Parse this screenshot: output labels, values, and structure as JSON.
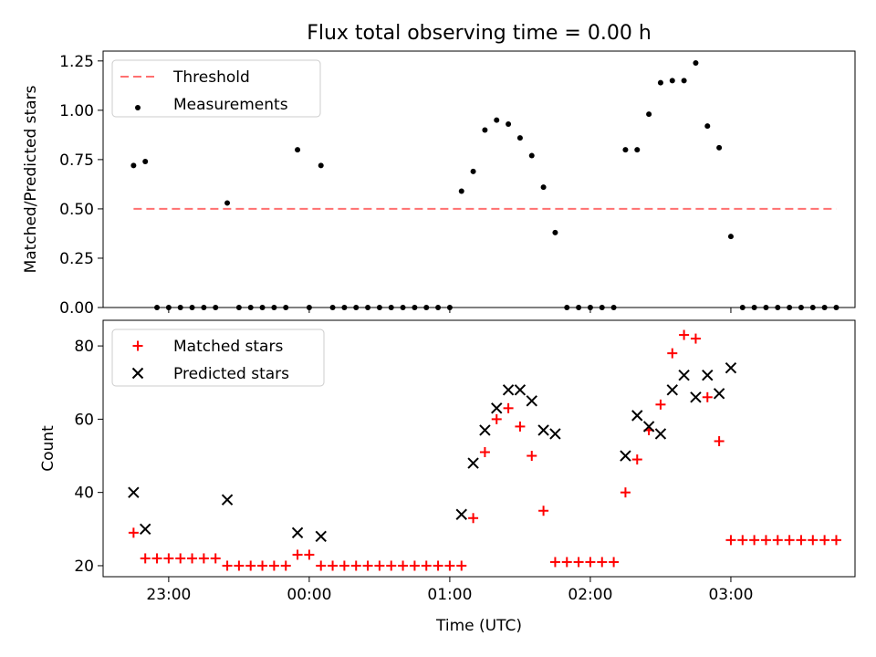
{
  "title": "Flux total observing time = 0.00 h",
  "chart_data": [
    {
      "type": "scatter",
      "panel": "top",
      "xlabel": "",
      "ylabel": "Matched/Predicted stars",
      "xlim": [
        "22:32",
        "03:53"
      ],
      "ylim": [
        0,
        1.3
      ],
      "yticks": [
        0,
        0.25,
        0.5,
        0.75,
        1.0,
        1.25
      ],
      "ytick_labels": [
        "0.00",
        "0.25",
        "0.50",
        "0.75",
        "1.00",
        "1.25"
      ],
      "legend_position": "upper left",
      "legend": [
        {
          "label": "Threshold",
          "marker": "dashed-line",
          "color": "#ff7070"
        },
        {
          "label": "Measurements",
          "marker": "dot",
          "color": "#000000"
        }
      ],
      "threshold": {
        "value": 0.5,
        "x_range": [
          "22:45",
          "03:45"
        ],
        "color": "#ff7070"
      },
      "series": [
        {
          "name": "Measurements",
          "color": "#000000",
          "points": [
            [
              "22:45",
              0.72
            ],
            [
              "22:50",
              0.74
            ],
            [
              "22:55",
              0.0
            ],
            [
              "23:00",
              0.0
            ],
            [
              "23:05",
              0.0
            ],
            [
              "23:10",
              0.0
            ],
            [
              "23:15",
              0.0
            ],
            [
              "23:20",
              0.0
            ],
            [
              "23:25",
              0.53
            ],
            [
              "23:30",
              0.0
            ],
            [
              "23:35",
              0.0
            ],
            [
              "23:40",
              0.0
            ],
            [
              "23:45",
              0.0
            ],
            [
              "23:50",
              0.0
            ],
            [
              "23:55",
              0.8
            ],
            [
              "00:00",
              0.0
            ],
            [
              "00:05",
              0.72
            ],
            [
              "00:10",
              0.0
            ],
            [
              "00:15",
              0.0
            ],
            [
              "00:20",
              0.0
            ],
            [
              "00:25",
              0.0
            ],
            [
              "00:30",
              0.0
            ],
            [
              "00:35",
              0.0
            ],
            [
              "00:40",
              0.0
            ],
            [
              "00:45",
              0.0
            ],
            [
              "00:50",
              0.0
            ],
            [
              "00:55",
              0.0
            ],
            [
              "01:00",
              0.0
            ],
            [
              "01:05",
              0.59
            ],
            [
              "01:10",
              0.69
            ],
            [
              "01:15",
              0.9
            ],
            [
              "01:20",
              0.95
            ],
            [
              "01:25",
              0.93
            ],
            [
              "01:30",
              0.86
            ],
            [
              "01:35",
              0.77
            ],
            [
              "01:40",
              0.61
            ],
            [
              "01:45",
              0.38
            ],
            [
              "01:50",
              0.0
            ],
            [
              "01:55",
              0.0
            ],
            [
              "02:00",
              0.0
            ],
            [
              "02:05",
              0.0
            ],
            [
              "02:10",
              0.0
            ],
            [
              "02:15",
              0.8
            ],
            [
              "02:20",
              0.8
            ],
            [
              "02:25",
              0.98
            ],
            [
              "02:30",
              1.14
            ],
            [
              "02:35",
              1.15
            ],
            [
              "02:40",
              1.15
            ],
            [
              "02:45",
              1.24
            ],
            [
              "02:50",
              0.92
            ],
            [
              "02:55",
              0.81
            ],
            [
              "03:00",
              0.36
            ],
            [
              "03:05",
              0.0
            ],
            [
              "03:10",
              0.0
            ],
            [
              "03:15",
              0.0
            ],
            [
              "03:20",
              0.0
            ],
            [
              "03:25",
              0.0
            ],
            [
              "03:30",
              0.0
            ],
            [
              "03:35",
              0.0
            ],
            [
              "03:40",
              0.0
            ],
            [
              "03:45",
              0.0
            ]
          ]
        }
      ]
    },
    {
      "type": "scatter",
      "panel": "bottom",
      "xlabel": "Time (UTC)",
      "ylabel": "Count",
      "xlim": [
        "22:32",
        "03:53"
      ],
      "xticks": [
        "23:00",
        "00:00",
        "01:00",
        "02:00",
        "03:00"
      ],
      "ylim": [
        17,
        87
      ],
      "yticks": [
        20,
        40,
        60,
        80
      ],
      "ytick_labels": [
        "20",
        "40",
        "60",
        "80"
      ],
      "legend_position": "upper left",
      "legend": [
        {
          "label": "Matched stars",
          "marker": "plus",
          "color": "#ff0000"
        },
        {
          "label": "Predicted stars",
          "marker": "x",
          "color": "#000000"
        }
      ],
      "series": [
        {
          "name": "Matched stars",
          "marker": "plus",
          "color": "#ff0000",
          "points": [
            [
              "22:45",
              29
            ],
            [
              "22:50",
              22
            ],
            [
              "22:55",
              22
            ],
            [
              "23:00",
              22
            ],
            [
              "23:05",
              22
            ],
            [
              "23:10",
              22
            ],
            [
              "23:15",
              22
            ],
            [
              "23:20",
              22
            ],
            [
              "23:25",
              20
            ],
            [
              "23:30",
              20
            ],
            [
              "23:35",
              20
            ],
            [
              "23:40",
              20
            ],
            [
              "23:45",
              20
            ],
            [
              "23:50",
              20
            ],
            [
              "23:55",
              23
            ],
            [
              "00:00",
              23
            ],
            [
              "00:05",
              20
            ],
            [
              "00:10",
              20
            ],
            [
              "00:15",
              20
            ],
            [
              "00:20",
              20
            ],
            [
              "00:25",
              20
            ],
            [
              "00:30",
              20
            ],
            [
              "00:35",
              20
            ],
            [
              "00:40",
              20
            ],
            [
              "00:45",
              20
            ],
            [
              "00:50",
              20
            ],
            [
              "00:55",
              20
            ],
            [
              "01:00",
              20
            ],
            [
              "01:05",
              20
            ],
            [
              "01:10",
              33
            ],
            [
              "01:15",
              51
            ],
            [
              "01:20",
              60
            ],
            [
              "01:25",
              63
            ],
            [
              "01:30",
              58
            ],
            [
              "01:35",
              50
            ],
            [
              "01:40",
              35
            ],
            [
              "01:45",
              21
            ],
            [
              "01:50",
              21
            ],
            [
              "01:55",
              21
            ],
            [
              "02:00",
              21
            ],
            [
              "02:05",
              21
            ],
            [
              "02:10",
              21
            ],
            [
              "02:15",
              40
            ],
            [
              "02:20",
              49
            ],
            [
              "02:25",
              57
            ],
            [
              "02:30",
              64
            ],
            [
              "02:35",
              78
            ],
            [
              "02:40",
              83
            ],
            [
              "02:45",
              82
            ],
            [
              "02:50",
              66
            ],
            [
              "02:55",
              54
            ],
            [
              "03:00",
              27
            ],
            [
              "03:05",
              27
            ],
            [
              "03:10",
              27
            ],
            [
              "03:15",
              27
            ],
            [
              "03:20",
              27
            ],
            [
              "03:25",
              27
            ],
            [
              "03:30",
              27
            ],
            [
              "03:35",
              27
            ],
            [
              "03:40",
              27
            ],
            [
              "03:45",
              27
            ]
          ]
        },
        {
          "name": "Predicted stars",
          "marker": "x",
          "color": "#000000",
          "points": [
            [
              "22:45",
              40
            ],
            [
              "22:50",
              30
            ],
            [
              "23:25",
              38
            ],
            [
              "23:55",
              29
            ],
            [
              "00:05",
              28
            ],
            [
              "01:05",
              34
            ],
            [
              "01:10",
              48
            ],
            [
              "01:15",
              57
            ],
            [
              "01:20",
              63
            ],
            [
              "01:25",
              68
            ],
            [
              "01:30",
              68
            ],
            [
              "01:35",
              65
            ],
            [
              "01:40",
              57
            ],
            [
              "01:45",
              56
            ],
            [
              "02:15",
              50
            ],
            [
              "02:20",
              61
            ],
            [
              "02:25",
              58
            ],
            [
              "02:30",
              56
            ],
            [
              "02:35",
              68
            ],
            [
              "02:40",
              72
            ],
            [
              "02:45",
              66
            ],
            [
              "02:50",
              72
            ],
            [
              "02:55",
              67
            ],
            [
              "03:00",
              74
            ]
          ]
        }
      ]
    }
  ]
}
